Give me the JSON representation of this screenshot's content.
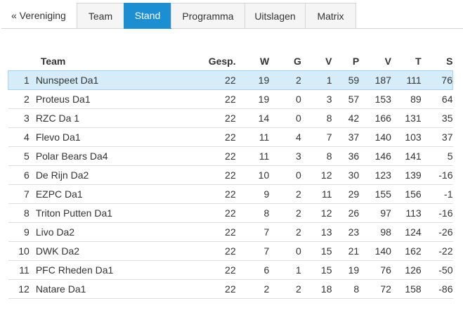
{
  "tabs": {
    "back_label": "« Vereniging",
    "items": [
      "Team",
      "Stand",
      "Programma",
      "Uitslagen",
      "Matrix"
    ],
    "active": "Stand"
  },
  "table": {
    "headers": [
      "Team",
      "Gesp.",
      "W",
      "G",
      "V",
      "P",
      "V",
      "T",
      "S"
    ],
    "rows": [
      {
        "pos": "1",
        "team": "Nunspeet Da1",
        "gesp": "22",
        "w": "19",
        "g": "2",
        "v": "1",
        "p": "59",
        "dv": "187",
        "dt": "111",
        "s": "76"
      },
      {
        "pos": "2",
        "team": "Proteus Da1",
        "gesp": "22",
        "w": "19",
        "g": "0",
        "v": "3",
        "p": "57",
        "dv": "153",
        "dt": "89",
        "s": "64"
      },
      {
        "pos": "3",
        "team": "RZC Da 1",
        "gesp": "22",
        "w": "14",
        "g": "0",
        "v": "8",
        "p": "42",
        "dv": "166",
        "dt": "131",
        "s": "35"
      },
      {
        "pos": "4",
        "team": "Flevo Da1",
        "gesp": "22",
        "w": "11",
        "g": "4",
        "v": "7",
        "p": "37",
        "dv": "140",
        "dt": "103",
        "s": "37"
      },
      {
        "pos": "5",
        "team": "Polar Bears Da4",
        "gesp": "22",
        "w": "11",
        "g": "3",
        "v": "8",
        "p": "36",
        "dv": "146",
        "dt": "141",
        "s": "5"
      },
      {
        "pos": "6",
        "team": "De Rijn Da2",
        "gesp": "22",
        "w": "10",
        "g": "0",
        "v": "12",
        "p": "30",
        "dv": "123",
        "dt": "139",
        "s": "-16"
      },
      {
        "pos": "7",
        "team": "EZPC Da1",
        "gesp": "22",
        "w": "9",
        "g": "2",
        "v": "11",
        "p": "29",
        "dv": "155",
        "dt": "156",
        "s": "-1"
      },
      {
        "pos": "8",
        "team": "Triton Putten Da1",
        "gesp": "22",
        "w": "8",
        "g": "2",
        "v": "12",
        "p": "26",
        "dv": "97",
        "dt": "113",
        "s": "-16"
      },
      {
        "pos": "9",
        "team": "Livo Da2",
        "gesp": "22",
        "w": "7",
        "g": "2",
        "v": "13",
        "p": "23",
        "dv": "98",
        "dt": "124",
        "s": "-26"
      },
      {
        "pos": "10",
        "team": "DWK Da2",
        "gesp": "22",
        "w": "7",
        "g": "0",
        "v": "15",
        "p": "21",
        "dv": "140",
        "dt": "162",
        "s": "-22"
      },
      {
        "pos": "11",
        "team": "PFC Rheden Da1",
        "gesp": "22",
        "w": "6",
        "g": "1",
        "v": "15",
        "p": "19",
        "dv": "76",
        "dt": "126",
        "s": "-50"
      },
      {
        "pos": "12",
        "team": "Natare Da1",
        "gesp": "22",
        "w": "2",
        "g": "2",
        "v": "18",
        "p": "8",
        "dv": "72",
        "dt": "158",
        "s": "-86"
      }
    ]
  },
  "colors": {
    "accent": "#1b8fd2",
    "highlight_row": "#d6edf9",
    "tab_background": "#f5f5f5"
  }
}
